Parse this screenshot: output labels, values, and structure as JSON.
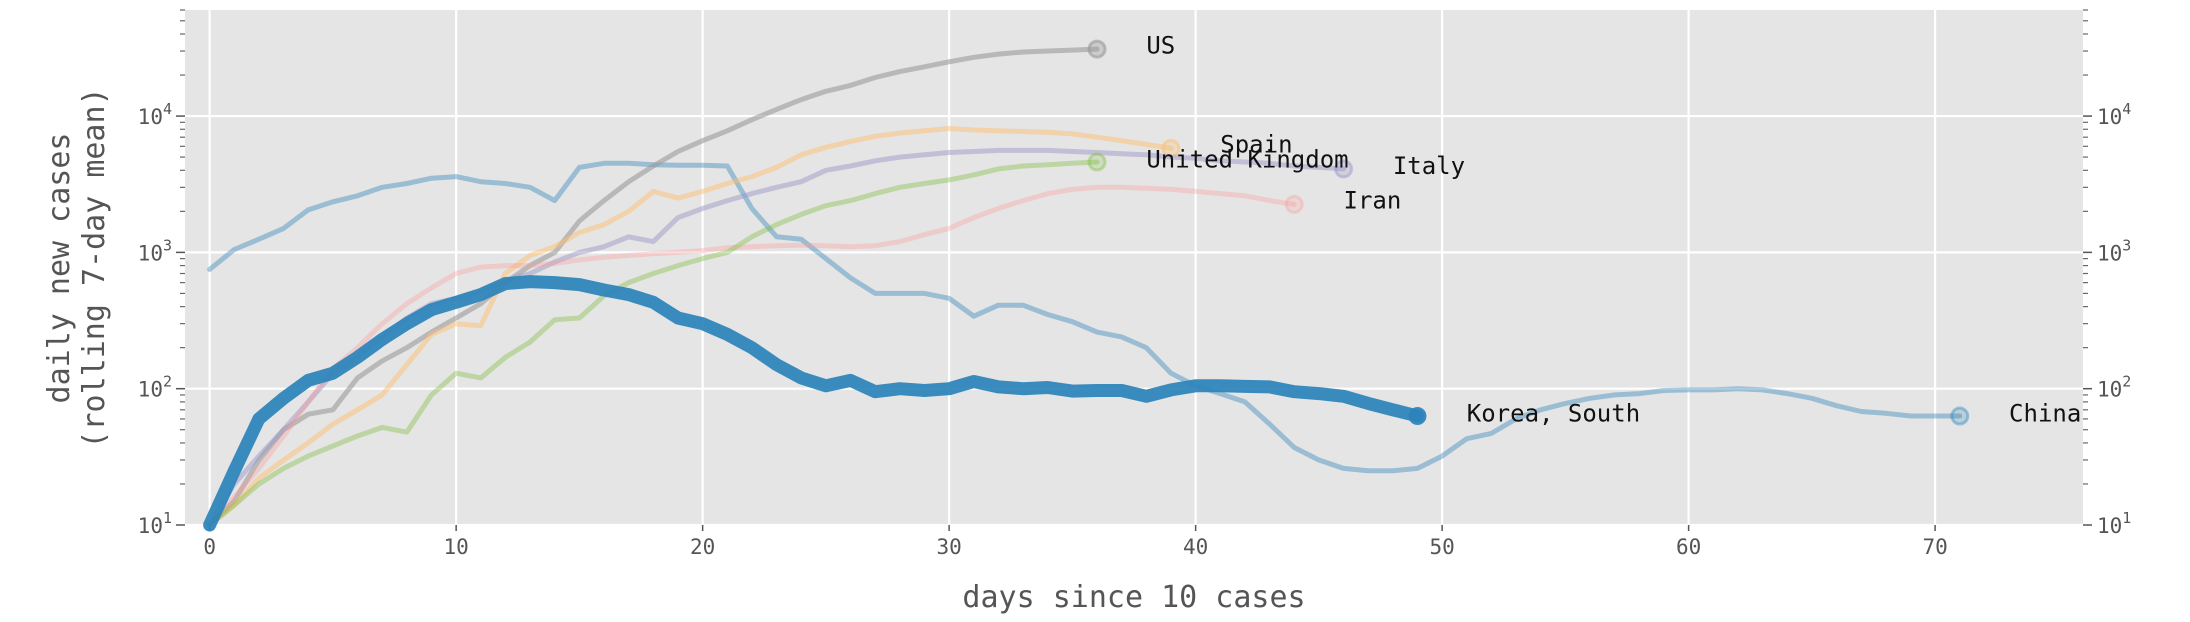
{
  "chart_data": {
    "type": "line",
    "xlabel": "days since 10 cases",
    "ylabel_line1": "daily new cases",
    "ylabel_line2": "(rolling 7-day mean)",
    "xlim": [
      -1,
      76
    ],
    "ylim": [
      10,
      60000
    ],
    "yscale": "log",
    "grid": true,
    "x_ticks": [
      0,
      10,
      20,
      30,
      40,
      50,
      60,
      70
    ],
    "y_ticks": [
      {
        "value": 10,
        "label_base": "10",
        "label_exp": "1"
      },
      {
        "value": 100,
        "label_base": "10",
        "label_exp": "2"
      },
      {
        "value": 1000,
        "label_base": "10",
        "label_exp": "3"
      },
      {
        "value": 10000,
        "label_base": "10",
        "label_exp": "4"
      }
    ],
    "series": [
      {
        "name": "China",
        "color": "#2b83ba",
        "opacity": 0.4,
        "width": 5,
        "x": [
          0,
          1,
          2,
          3,
          4,
          5,
          6,
          7,
          8,
          9,
          10,
          11,
          12,
          13,
          14,
          15,
          16,
          17,
          18,
          19,
          20,
          21,
          22,
          23,
          24,
          25,
          26,
          27,
          28,
          29,
          30,
          31,
          32,
          33,
          34,
          35,
          36,
          37,
          38,
          39,
          40,
          41,
          42,
          43,
          44,
          45,
          46,
          47,
          48,
          49,
          50,
          51,
          52,
          53,
          54,
          55,
          56,
          57,
          58,
          59,
          60,
          61,
          62,
          63,
          64,
          65,
          66,
          67,
          68,
          69,
          70,
          71
        ],
        "y": [
          750,
          1050,
          1250,
          1500,
          2050,
          2350,
          2600,
          3000,
          3200,
          3500,
          3600,
          3300,
          3200,
          3000,
          2400,
          4200,
          4500,
          4500,
          4400,
          4350,
          4350,
          4300,
          2100,
          1300,
          1250,
          900,
          650,
          500,
          500,
          500,
          460,
          340,
          410,
          410,
          350,
          310,
          260,
          240,
          200,
          130,
          105,
          92,
          80,
          55,
          37,
          30,
          26,
          25,
          25,
          26,
          32,
          43,
          47,
          60,
          70,
          78,
          85,
          90,
          92,
          97,
          98,
          98,
          100,
          98,
          92,
          85,
          75,
          68,
          66,
          63,
          63,
          63
        ]
      },
      {
        "name": "US",
        "color": "#999999",
        "opacity": 0.6,
        "width": 5,
        "x": [
          0,
          1,
          2,
          3,
          4,
          5,
          6,
          7,
          8,
          9,
          10,
          11,
          12,
          13,
          14,
          15,
          16,
          17,
          18,
          19,
          20,
          21,
          22,
          23,
          24,
          25,
          26,
          27,
          28,
          29,
          30,
          31,
          32,
          33,
          34,
          35,
          36
        ],
        "y": [
          10,
          15,
          30,
          50,
          65,
          70,
          120,
          160,
          200,
          260,
          330,
          420,
          600,
          800,
          1000,
          1700,
          2400,
          3300,
          4300,
          5500,
          6600,
          7800,
          9400,
          11200,
          13200,
          15200,
          16800,
          19200,
          21200,
          23000,
          25000,
          27000,
          28500,
          29500,
          30000,
          30500,
          31000
        ]
      },
      {
        "name": "Spain",
        "color": "#fdbf6f",
        "opacity": 0.5,
        "width": 5,
        "x": [
          0,
          1,
          2,
          3,
          4,
          5,
          6,
          7,
          8,
          9,
          10,
          11,
          12,
          13,
          14,
          15,
          16,
          17,
          18,
          19,
          20,
          21,
          22,
          23,
          24,
          25,
          26,
          27,
          28,
          29,
          30,
          31,
          32,
          33,
          34,
          35,
          36,
          37,
          38,
          39
        ],
        "y": [
          10,
          14,
          22,
          30,
          40,
          55,
          70,
          90,
          150,
          250,
          300,
          290,
          700,
          950,
          1100,
          1400,
          1600,
          2000,
          2800,
          2500,
          2800,
          3200,
          3600,
          4200,
          5200,
          5900,
          6500,
          7100,
          7500,
          7800,
          8100,
          7900,
          7800,
          7700,
          7600,
          7400,
          7000,
          6600,
          6200,
          5800
        ]
      },
      {
        "name": "Italy",
        "color": "#9e9ac8",
        "opacity": 0.5,
        "width": 5,
        "x": [
          0,
          1,
          2,
          3,
          4,
          5,
          6,
          7,
          8,
          9,
          10,
          11,
          12,
          13,
          14,
          15,
          16,
          17,
          18,
          19,
          20,
          21,
          22,
          23,
          24,
          25,
          26,
          27,
          28,
          29,
          30,
          31,
          32,
          33,
          34,
          35,
          36,
          37,
          38,
          39,
          40,
          41,
          42,
          43,
          44,
          45,
          46
        ],
        "y": [
          10,
          20,
          32,
          50,
          80,
          130,
          170,
          240,
          330,
          420,
          460,
          520,
          620,
          700,
          850,
          1000,
          1100,
          1300,
          1200,
          1800,
          2100,
          2400,
          2700,
          3000,
          3300,
          4000,
          4300,
          4700,
          5000,
          5200,
          5400,
          5500,
          5600,
          5600,
          5600,
          5500,
          5400,
          5300,
          5200,
          5000,
          4900,
          4700,
          4600,
          4500,
          4300,
          4200,
          4100
        ]
      },
      {
        "name": "Iran",
        "color": "#fb9a99",
        "opacity": 0.35,
        "width": 5,
        "x": [
          0,
          1,
          2,
          3,
          4,
          5,
          6,
          7,
          8,
          9,
          10,
          11,
          12,
          13,
          14,
          15,
          16,
          17,
          18,
          19,
          20,
          21,
          22,
          23,
          24,
          25,
          26,
          27,
          28,
          29,
          30,
          31,
          32,
          33,
          34,
          35,
          36,
          37,
          38,
          39,
          40,
          41,
          42,
          43,
          44
        ],
        "y": [
          10,
          16,
          26,
          45,
          80,
          140,
          200,
          300,
          420,
          550,
          700,
          780,
          800,
          800,
          830,
          880,
          920,
          950,
          980,
          1000,
          1030,
          1080,
          1100,
          1120,
          1130,
          1120,
          1100,
          1120,
          1200,
          1350,
          1500,
          1800,
          2100,
          2400,
          2700,
          2900,
          3000,
          3000,
          2950,
          2900,
          2800,
          2700,
          2600,
          2400,
          2250
        ]
      },
      {
        "name": "United Kingdom",
        "color": "#7fbf3f",
        "opacity": 0.4,
        "width": 5,
        "x": [
          0,
          1,
          2,
          3,
          4,
          5,
          6,
          7,
          8,
          9,
          10,
          11,
          12,
          13,
          14,
          15,
          16,
          17,
          18,
          19,
          20,
          21,
          22,
          23,
          24,
          25,
          26,
          27,
          28,
          29,
          30,
          31,
          32,
          33,
          34,
          35,
          36
        ],
        "y": [
          10,
          14,
          20,
          26,
          32,
          38,
          45,
          52,
          48,
          90,
          130,
          120,
          170,
          220,
          320,
          330,
          480,
          600,
          700,
          800,
          900,
          1000,
          1300,
          1600,
          1900,
          2200,
          2400,
          2700,
          3000,
          3200,
          3400,
          3700,
          4100,
          4300,
          4400,
          4500,
          4600
        ]
      },
      {
        "name": "Korea, South",
        "color": "#2b83ba",
        "opacity": 0.92,
        "width": 13,
        "x": [
          0,
          1,
          2,
          3,
          4,
          5,
          6,
          7,
          8,
          9,
          10,
          11,
          12,
          13,
          14,
          15,
          16,
          17,
          18,
          19,
          20,
          21,
          22,
          23,
          24,
          25,
          26,
          27,
          28,
          29,
          30,
          31,
          32,
          33,
          34,
          35,
          36,
          37,
          38,
          39,
          40,
          41,
          42,
          43,
          44,
          45,
          46,
          47,
          48,
          49
        ],
        "y": [
          10,
          25,
          60,
          85,
          115,
          130,
          170,
          230,
          300,
          380,
          430,
          490,
          590,
          610,
          600,
          580,
          530,
          490,
          430,
          330,
          300,
          250,
          200,
          150,
          120,
          105,
          115,
          95,
          100,
          97,
          100,
          113,
          103,
          100,
          102,
          96,
          97,
          97,
          88,
          98,
          105,
          105,
          104,
          103,
          95,
          92,
          88,
          78,
          70,
          63
        ]
      }
    ],
    "labels": [
      {
        "text": "US",
        "series": "US",
        "x": 38.0,
        "y": 33000
      },
      {
        "text": "Spain",
        "series": "Spain",
        "x": 41.0,
        "y": 6200
      },
      {
        "text": "United Kingdom",
        "series": "United Kingdom",
        "x": 38.0,
        "y": 4800
      },
      {
        "text": "Italy",
        "series": "Italy",
        "x": 48.0,
        "y": 4300
      },
      {
        "text": "Iran",
        "series": "Iran",
        "x": 46.0,
        "y": 2400
      },
      {
        "text": "Korea, South",
        "series": "Korea, South",
        "x": 51.0,
        "y": 66
      },
      {
        "text": "China",
        "series": "China",
        "x": 73.0,
        "y": 66
      }
    ]
  }
}
